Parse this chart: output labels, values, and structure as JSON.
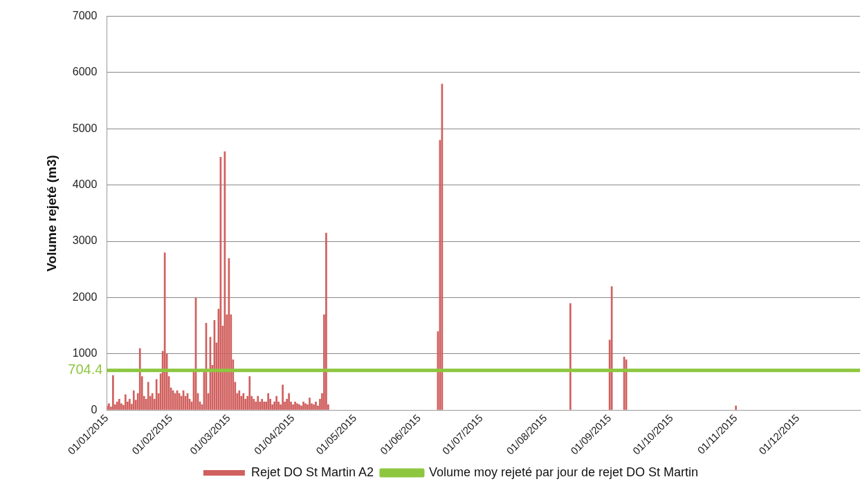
{
  "chart_data": {
    "type": "bar",
    "ylabel": "Volume rejeté (m3)",
    "xlim": [
      "2015-01-01",
      "2015-12-31"
    ],
    "xticks": [
      {
        "value": "2015-01-01",
        "label": "01/01/2015"
      },
      {
        "value": "2015-02-01",
        "label": "01/02/2015"
      },
      {
        "value": "2015-03-01",
        "label": "01/03/2015"
      },
      {
        "value": "2015-04-01",
        "label": "01/04/2015"
      },
      {
        "value": "2015-05-01",
        "label": "01/05/2015"
      },
      {
        "value": "2015-06-01",
        "label": "01/06/2015"
      },
      {
        "value": "2015-07-01",
        "label": "01/07/2015"
      },
      {
        "value": "2015-08-01",
        "label": "01/08/2015"
      },
      {
        "value": "2015-09-01",
        "label": "01/09/2015"
      },
      {
        "value": "2015-10-01",
        "label": "01/10/2015"
      },
      {
        "value": "2015-11-01",
        "label": "01/11/2015"
      },
      {
        "value": "2015-12-01",
        "label": "01/12/2015"
      }
    ],
    "ylim": [
      0,
      7000
    ],
    "yticks": [
      0,
      1000,
      2000,
      3000,
      4000,
      5000,
      6000,
      7000
    ],
    "grid": "y",
    "legend": "bottom",
    "series": [
      {
        "name": "Rejet DO St Martin A2",
        "color": "#d0605e",
        "x": [
          "2015-01-01",
          "2015-01-02",
          "2015-01-03",
          "2015-01-04",
          "2015-01-05",
          "2015-01-06",
          "2015-01-07",
          "2015-01-08",
          "2015-01-09",
          "2015-01-10",
          "2015-01-11",
          "2015-01-12",
          "2015-01-13",
          "2015-01-14",
          "2015-01-15",
          "2015-01-16",
          "2015-01-17",
          "2015-01-18",
          "2015-01-19",
          "2015-01-20",
          "2015-01-21",
          "2015-01-22",
          "2015-01-23",
          "2015-01-24",
          "2015-01-25",
          "2015-01-26",
          "2015-01-27",
          "2015-01-28",
          "2015-01-29",
          "2015-01-30",
          "2015-01-31",
          "2015-02-01",
          "2015-02-02",
          "2015-02-03",
          "2015-02-04",
          "2015-02-05",
          "2015-02-06",
          "2015-02-07",
          "2015-02-08",
          "2015-02-09",
          "2015-02-10",
          "2015-02-11",
          "2015-02-12",
          "2015-02-13",
          "2015-02-14",
          "2015-02-15",
          "2015-02-16",
          "2015-02-17",
          "2015-02-18",
          "2015-02-19",
          "2015-02-20",
          "2015-02-21",
          "2015-02-22",
          "2015-02-23",
          "2015-02-24",
          "2015-02-25",
          "2015-02-26",
          "2015-02-27",
          "2015-02-28",
          "2015-03-01",
          "2015-03-02",
          "2015-03-03",
          "2015-03-04",
          "2015-03-05",
          "2015-03-06",
          "2015-03-07",
          "2015-03-08",
          "2015-03-09",
          "2015-03-10",
          "2015-03-11",
          "2015-03-12",
          "2015-03-13",
          "2015-03-14",
          "2015-03-15",
          "2015-03-16",
          "2015-03-17",
          "2015-03-18",
          "2015-03-19",
          "2015-03-20",
          "2015-03-21",
          "2015-03-22",
          "2015-03-23",
          "2015-03-24",
          "2015-03-25",
          "2015-03-26",
          "2015-03-27",
          "2015-03-28",
          "2015-03-29",
          "2015-03-30",
          "2015-03-31",
          "2015-04-01",
          "2015-04-02",
          "2015-04-03",
          "2015-04-04",
          "2015-04-05",
          "2015-04-06",
          "2015-04-07",
          "2015-04-08",
          "2015-04-09",
          "2015-04-10",
          "2015-04-11",
          "2015-04-12",
          "2015-04-13",
          "2015-04-14",
          "2015-04-15",
          "2015-04-16",
          "2015-04-17",
          "2015-04-18",
          "2015-06-10",
          "2015-06-11",
          "2015-06-12",
          "2015-08-13",
          "2015-09-01",
          "2015-09-02",
          "2015-09-08",
          "2015-09-09",
          "2015-11-01"
        ],
        "values": [
          80,
          120,
          60,
          620,
          100,
          150,
          200,
          120,
          90,
          280,
          150,
          200,
          110,
          350,
          180,
          300,
          1100,
          600,
          250,
          200,
          500,
          250,
          300,
          200,
          550,
          300,
          650,
          1050,
          2800,
          1000,
          600,
          400,
          350,
          300,
          350,
          300,
          250,
          350,
          250,
          300,
          200,
          150,
          700,
          2000,
          300,
          150,
          100,
          700,
          1550,
          300,
          1300,
          800,
          1600,
          1200,
          1800,
          4500,
          1500,
          4600,
          1700,
          2700,
          1700,
          900,
          500,
          300,
          350,
          250,
          300,
          200,
          250,
          600,
          250,
          200,
          150,
          250,
          150,
          200,
          150,
          150,
          300,
          200,
          100,
          150,
          250,
          150,
          100,
          450,
          150,
          200,
          300,
          150,
          100,
          150,
          120,
          100,
          80,
          150,
          120,
          100,
          220,
          120,
          100,
          150,
          80,
          200,
          300,
          1700,
          3150,
          100,
          1400,
          4800,
          5800,
          1900,
          1250,
          2200,
          950,
          900,
          80
        ]
      },
      {
        "name": "Volume moy rejeté par jour de rejet DO St Martin",
        "type": "line",
        "color": "#8dc63f",
        "x": [
          "2015-01-01",
          "2015-12-31"
        ],
        "values": [
          704.4,
          704.4
        ],
        "value_labels": [
          "704.4",
          null
        ]
      }
    ]
  }
}
